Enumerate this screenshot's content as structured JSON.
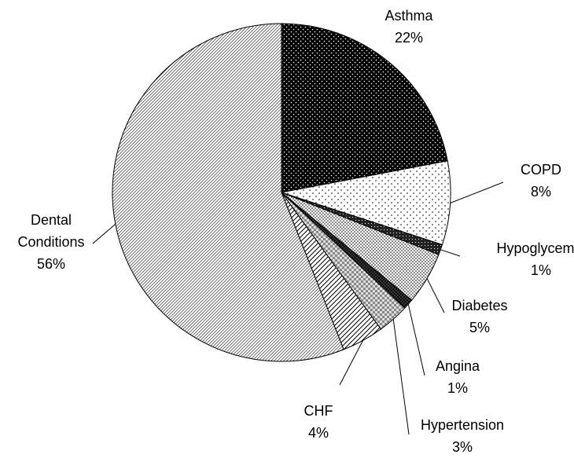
{
  "chart_data": {
    "type": "pie",
    "categories": [
      "Asthma",
      "COPD",
      "Hypoglycemia",
      "Diabetes",
      "Angina",
      "Hypertension",
      "CHF",
      "Dental Conditions"
    ],
    "values": [
      22,
      8,
      1,
      5,
      1,
      3,
      4,
      56
    ],
    "value_labels": [
      "22%",
      "8%",
      "1%",
      "5%",
      "1%",
      "3%",
      "4%",
      "56%"
    ]
  }
}
